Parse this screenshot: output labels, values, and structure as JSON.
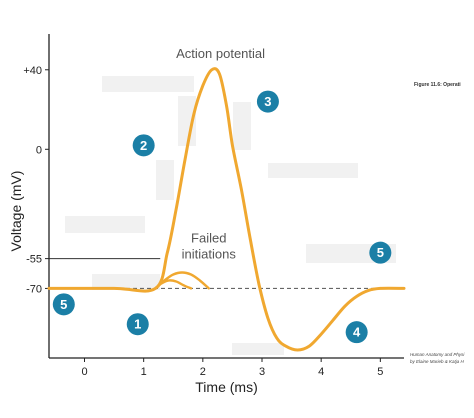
{
  "chart_data": {
    "type": "line",
    "title": "",
    "xlabel": "Time (ms)",
    "ylabel": "Voltage (mV)",
    "xlim": [
      -0.6,
      5.4
    ],
    "ylim": [
      -105,
      58
    ],
    "x_ticks": [
      0,
      1,
      2,
      3,
      4,
      5
    ],
    "x_tick_labels": [
      "0",
      "1",
      "2",
      "3",
      "4",
      "5"
    ],
    "y_ticks": [
      40,
      0,
      -55,
      -70
    ],
    "y_tick_labels": [
      "+40",
      "0",
      "-55",
      "-70"
    ],
    "threshold_mv": -55,
    "resting_mv": -70,
    "series": [
      {
        "name": "",
        "color": "#f0a830",
        "x": [
          -0.6,
          0.5,
          1.2,
          1.4,
          1.55,
          1.7,
          1.85,
          2.0,
          2.15,
          2.28,
          2.4,
          2.5,
          2.65,
          2.8,
          2.95,
          3.1,
          3.25,
          3.4,
          3.6,
          3.8,
          4.0,
          4.2,
          4.4,
          4.6,
          4.8,
          5.0,
          5.4
        ],
        "y": [
          -70,
          -70,
          -70,
          -52,
          -30,
          -5,
          18,
          32,
          40,
          38,
          22,
          2,
          -20,
          -45,
          -68,
          -85,
          -95,
          -99,
          -101,
          -99,
          -93,
          -86,
          -79,
          -74,
          -71,
          -70,
          -70
        ]
      },
      {
        "name": "",
        "color": "#f0a830",
        "x": [
          1.2,
          1.35,
          1.5,
          1.65,
          1.8,
          1.95,
          2.1
        ],
        "y": [
          -70,
          -66,
          -63,
          -62,
          -63,
          -66,
          -70
        ]
      },
      {
        "name": "",
        "color": "#f0a830",
        "x": [
          1.2,
          1.3,
          1.42,
          1.55,
          1.68,
          1.8
        ],
        "y": [
          -70,
          -67.5,
          -66,
          -66.5,
          -68.5,
          -70
        ]
      }
    ],
    "annotations": [
      {
        "text": "Action potential",
        "x": 2.3,
        "y": 46
      },
      {
        "text": "Failed",
        "x": 2.1,
        "y": -47
      },
      {
        "text": "initiations",
        "x": 2.1,
        "y": -55
      }
    ],
    "markers": [
      {
        "label": "1",
        "x": 0.9,
        "y": -88
      },
      {
        "label": "2",
        "x": 1.0,
        "y": 2
      },
      {
        "label": "3",
        "x": 3.1,
        "y": 24
      },
      {
        "label": "4",
        "x": 4.6,
        "y": -92
      },
      {
        "label": "5",
        "x": -0.35,
        "y": -78
      },
      {
        "label": "5",
        "x": 5.0,
        "y": -52
      }
    ],
    "figure_label": "Figure 11.6:  Operati",
    "credit_lines": [
      "Human Anatomy and Physi",
      "by Elaine Marieb & Katja H"
    ],
    "colors": {
      "curve": "#f0a830",
      "badge": "#1b7fa6",
      "axis": "#222222",
      "resting_line": "#666666",
      "label_box": "#eeeeee"
    }
  }
}
